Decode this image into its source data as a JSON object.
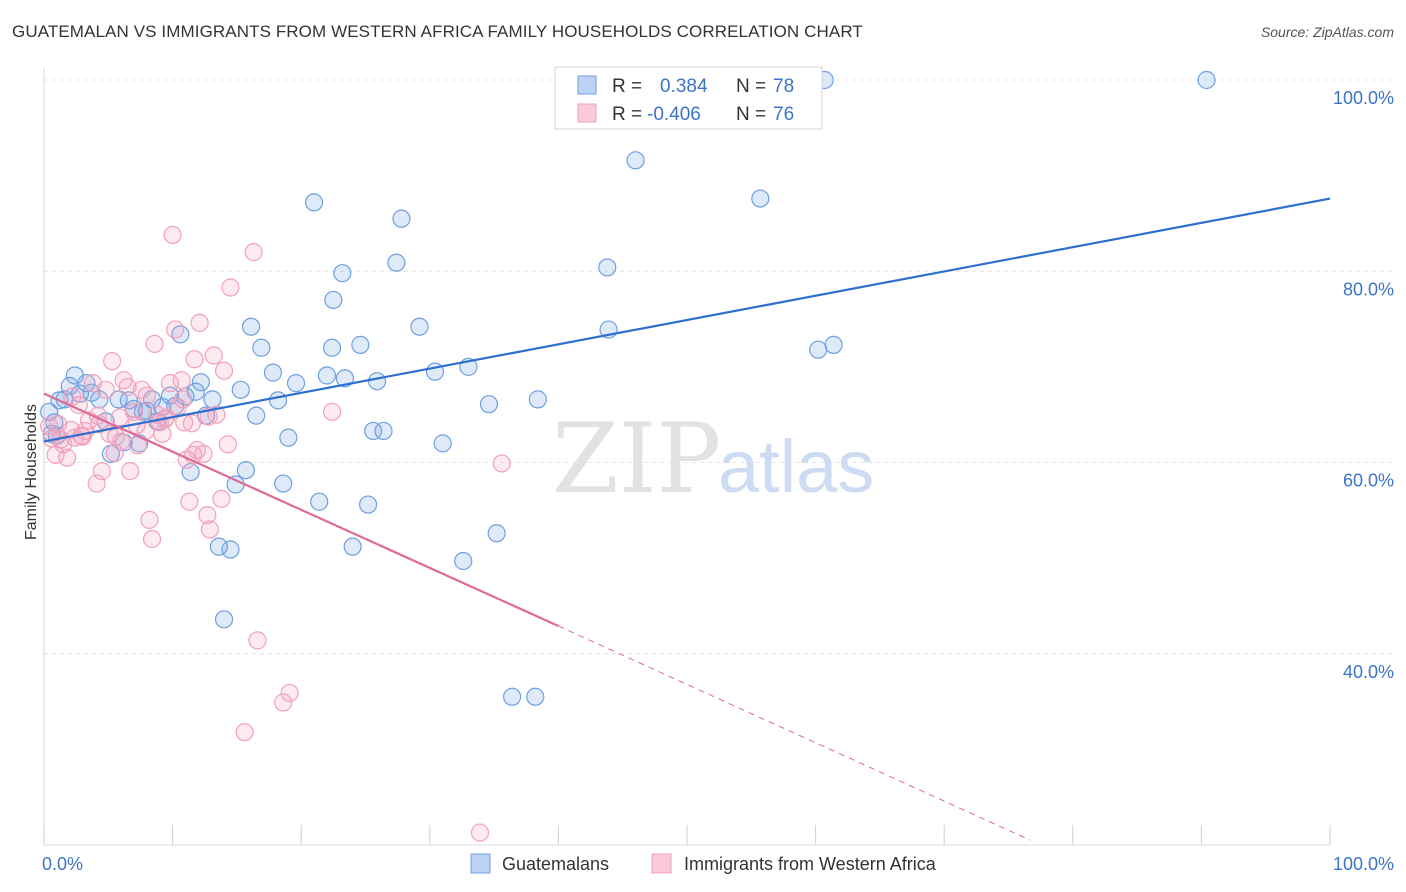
{
  "title": "GUATEMALAN VS IMMIGRANTS FROM WESTERN AFRICA FAMILY HOUSEHOLDS CORRELATION CHART",
  "source": "Source: ZipAtlas.com",
  "watermark": {
    "zip": "ZIP",
    "atlas": "atlas"
  },
  "legend_box": {
    "rows": [
      {
        "r_label": "R =",
        "r_value": "0.384",
        "n_label": "N =",
        "n_value": "78"
      },
      {
        "r_label": "R =",
        "r_value": "-0.406",
        "n_label": "N =",
        "n_value": "76"
      }
    ]
  },
  "chart_data": {
    "type": "scatter",
    "ylabel": "Family Households",
    "xlim": [
      0,
      100
    ],
    "ylim": [
      20,
      100
    ],
    "x_tick_labels": [
      "0.0%",
      "100.0%"
    ],
    "y_ticks": [
      {
        "value": 40,
        "label": "40.0%"
      },
      {
        "value": 60,
        "label": "60.0%"
      },
      {
        "value": 80,
        "label": "80.0%"
      },
      {
        "value": 100,
        "label": "100.0%"
      }
    ],
    "grid": true,
    "legend_position": "bottom",
    "series": [
      {
        "name": "Guatemalans",
        "color": "#6f9fe0",
        "line_color": "#2d6fd0",
        "stats": {
          "r": 0.384,
          "n": 78
        },
        "trend": {
          "x0": 0,
          "y0": 62.2,
          "x1": 100,
          "y1": 87.6,
          "dashed_to": null
        },
        "points": [
          [
            0.4,
            65.3
          ],
          [
            0.6,
            63.0
          ],
          [
            0.8,
            64.2
          ],
          [
            1.0,
            62.8
          ],
          [
            1.2,
            66.5
          ],
          [
            1.6,
            66.6
          ],
          [
            2.0,
            68.0
          ],
          [
            2.4,
            69.1
          ],
          [
            2.8,
            67.2
          ],
          [
            3.3,
            68.3
          ],
          [
            3.7,
            67.3
          ],
          [
            4.3,
            66.6
          ],
          [
            4.8,
            64.3
          ],
          [
            5.2,
            60.9
          ],
          [
            5.8,
            66.6
          ],
          [
            6.2,
            62.1
          ],
          [
            6.6,
            66.5
          ],
          [
            7.0,
            65.6
          ],
          [
            7.4,
            62.0
          ],
          [
            7.7,
            65.3
          ],
          [
            8.0,
            65.4
          ],
          [
            8.4,
            66.6
          ],
          [
            8.8,
            64.3
          ],
          [
            9.2,
            65.8
          ],
          [
            9.8,
            67.0
          ],
          [
            10.2,
            65.9
          ],
          [
            10.6,
            73.4
          ],
          [
            11.0,
            66.9
          ],
          [
            11.4,
            59.0
          ],
          [
            11.8,
            67.4
          ],
          [
            12.2,
            68.4
          ],
          [
            12.6,
            64.9
          ],
          [
            13.1,
            66.6
          ],
          [
            13.6,
            51.2
          ],
          [
            14.0,
            43.6
          ],
          [
            14.5,
            50.9
          ],
          [
            14.9,
            57.7
          ],
          [
            15.3,
            67.6
          ],
          [
            15.7,
            59.2
          ],
          [
            16.1,
            74.2
          ],
          [
            16.5,
            64.9
          ],
          [
            16.9,
            72.0
          ],
          [
            17.8,
            69.4
          ],
          [
            18.2,
            66.5
          ],
          [
            18.6,
            57.8
          ],
          [
            19.0,
            62.6
          ],
          [
            19.6,
            68.3
          ],
          [
            21.0,
            87.2
          ],
          [
            21.4,
            55.9
          ],
          [
            22.0,
            69.1
          ],
          [
            22.4,
            72.0
          ],
          [
            22.5,
            77.0
          ],
          [
            23.2,
            79.8
          ],
          [
            23.4,
            68.8
          ],
          [
            24.0,
            51.2
          ],
          [
            24.6,
            72.3
          ],
          [
            25.2,
            55.6
          ],
          [
            25.6,
            63.3
          ],
          [
            25.9,
            68.5
          ],
          [
            26.4,
            63.3
          ],
          [
            27.4,
            80.9
          ],
          [
            27.8,
            85.5
          ],
          [
            29.2,
            74.2
          ],
          [
            30.4,
            69.5
          ],
          [
            31.0,
            62.0
          ],
          [
            32.6,
            49.7
          ],
          [
            33.0,
            70.0
          ],
          [
            34.6,
            66.1
          ],
          [
            35.2,
            52.6
          ],
          [
            36.4,
            35.5
          ],
          [
            38.2,
            35.5
          ],
          [
            38.4,
            66.6
          ],
          [
            43.8,
            80.4
          ],
          [
            43.9,
            73.9
          ],
          [
            46.0,
            91.6
          ],
          [
            55.7,
            87.6
          ],
          [
            60.2,
            71.8
          ],
          [
            61.4,
            72.3
          ]
        ]
      },
      {
        "name": "Immigrants from Western Africa",
        "color": "#f2a0bb",
        "line_color": "#e06a96",
        "stats": {
          "r": -0.406,
          "n": 76
        },
        "trend": {
          "x0": 0,
          "y0": 67.2,
          "x1": 40,
          "y1": 42.9,
          "dashed_to": {
            "x": 76.7,
            "y": 20.5
          }
        },
        "points": [
          [
            0.4,
            63.8
          ],
          [
            0.6,
            62.5
          ],
          [
            0.9,
            60.8
          ],
          [
            1.1,
            64.0
          ],
          [
            1.3,
            62.4
          ],
          [
            1.5,
            61.9
          ],
          [
            1.8,
            60.5
          ],
          [
            2.1,
            63.4
          ],
          [
            2.4,
            62.6
          ],
          [
            2.7,
            66.0
          ],
          [
            2.9,
            62.8
          ],
          [
            3.2,
            63.3
          ],
          [
            3.5,
            64.4
          ],
          [
            3.8,
            68.3
          ],
          [
            4.1,
            57.8
          ],
          [
            4.3,
            64.0
          ],
          [
            4.5,
            59.1
          ],
          [
            4.8,
            67.6
          ],
          [
            5.1,
            63.0
          ],
          [
            5.3,
            70.6
          ],
          [
            5.6,
            62.7
          ],
          [
            5.9,
            64.7
          ],
          [
            6.2,
            68.6
          ],
          [
            6.5,
            67.9
          ],
          [
            6.7,
            59.1
          ],
          [
            7.0,
            65.3
          ],
          [
            7.3,
            61.8
          ],
          [
            7.6,
            67.6
          ],
          [
            7.9,
            63.3
          ],
          [
            8.2,
            54.0
          ],
          [
            8.4,
            52.0
          ],
          [
            8.6,
            72.4
          ],
          [
            8.8,
            65.0
          ],
          [
            9.0,
            64.2
          ],
          [
            9.2,
            63.0
          ],
          [
            9.5,
            64.7
          ],
          [
            9.8,
            68.3
          ],
          [
            10.0,
            83.8
          ],
          [
            10.2,
            73.9
          ],
          [
            10.4,
            65.8
          ],
          [
            10.7,
            68.6
          ],
          [
            10.9,
            64.2
          ],
          [
            11.1,
            60.3
          ],
          [
            11.3,
            55.9
          ],
          [
            11.5,
            64.1
          ],
          [
            11.7,
            70.8
          ],
          [
            11.9,
            61.3
          ],
          [
            12.1,
            74.6
          ],
          [
            12.4,
            60.9
          ],
          [
            12.7,
            54.5
          ],
          [
            12.9,
            53.0
          ],
          [
            13.2,
            71.2
          ],
          [
            13.4,
            65.0
          ],
          [
            13.8,
            56.2
          ],
          [
            14.0,
            69.6
          ],
          [
            14.3,
            61.9
          ],
          [
            14.5,
            78.3
          ],
          [
            15.6,
            31.8
          ],
          [
            16.3,
            82.0
          ],
          [
            16.6,
            41.4
          ],
          [
            18.6,
            34.9
          ],
          [
            19.1,
            35.9
          ],
          [
            22.4,
            65.3
          ],
          [
            33.9,
            21.3
          ],
          [
            35.6,
            59.9
          ],
          [
            7.2,
            63.9
          ],
          [
            4.2,
            64.9
          ],
          [
            6.0,
            62.2
          ],
          [
            3.0,
            62.7
          ],
          [
            8.0,
            67.0
          ],
          [
            9.4,
            64.5
          ],
          [
            10.8,
            66.6
          ],
          [
            12.8,
            64.8
          ],
          [
            5.5,
            61.0
          ],
          [
            2.2,
            66.9
          ],
          [
            11.6,
            60.8
          ]
        ]
      }
    ]
  }
}
